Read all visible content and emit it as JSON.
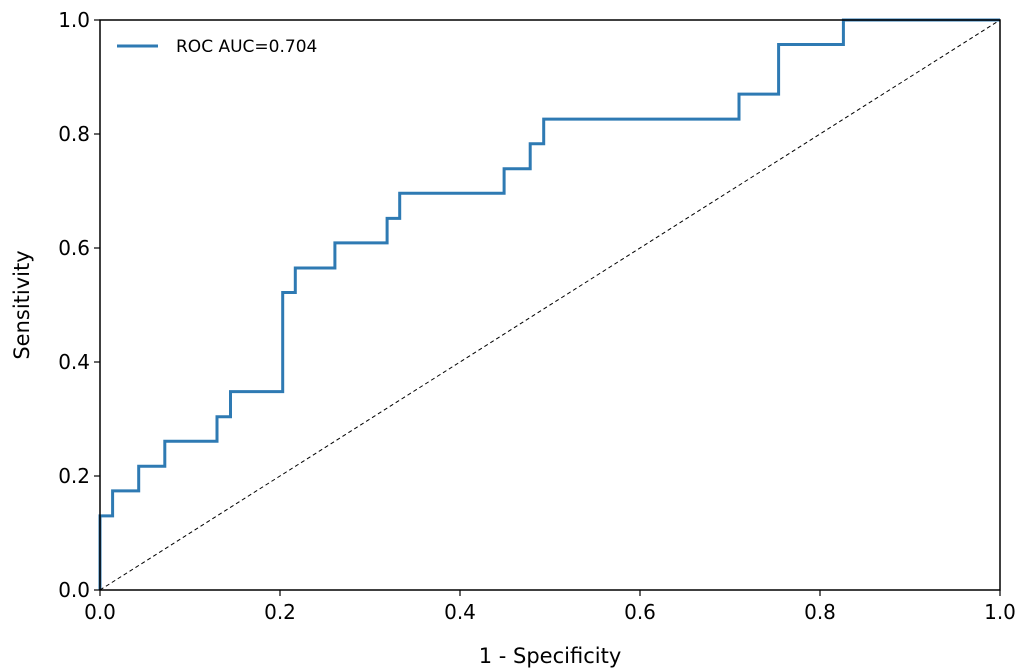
{
  "chart_data": {
    "type": "line",
    "xlabel": "1 - Specificity",
    "ylabel": "Sensitivity",
    "xlim": [
      0.0,
      1.0
    ],
    "ylim": [
      0.0,
      1.0
    ],
    "x_ticks": [
      "0.0",
      "0.2",
      "0.4",
      "0.6",
      "0.8",
      "1.0"
    ],
    "y_ticks": [
      "0.0",
      "0.2",
      "0.4",
      "0.6",
      "0.8",
      "1.0"
    ],
    "grid": false,
    "legend_position": "top-left",
    "series": [
      {
        "name": "ROC AUC=0.704",
        "color": "#2e7ab3",
        "step": true,
        "x": [
          0.0,
          0.0,
          0.0,
          0.014,
          0.014,
          0.043,
          0.043,
          0.072,
          0.072,
          0.13,
          0.13,
          0.145,
          0.145,
          0.203,
          0.203,
          0.217,
          0.217,
          0.261,
          0.261,
          0.319,
          0.319,
          0.333,
          0.333,
          0.449,
          0.449,
          0.478,
          0.478,
          0.493,
          0.493,
          0.71,
          0.71,
          0.754,
          0.754,
          0.826,
          0.826,
          1.0
        ],
        "y": [
          0.0,
          0.043,
          0.13,
          0.13,
          0.174,
          0.174,
          0.217,
          0.217,
          0.261,
          0.261,
          0.304,
          0.304,
          0.348,
          0.348,
          0.522,
          0.522,
          0.565,
          0.565,
          0.609,
          0.609,
          0.652,
          0.652,
          0.696,
          0.696,
          0.739,
          0.739,
          0.783,
          0.783,
          0.826,
          0.826,
          0.87,
          0.87,
          0.957,
          0.957,
          1.0,
          1.0
        ]
      },
      {
        "name": "",
        "color": "#000000",
        "dashed": true,
        "x": [
          0.0,
          1.0
        ],
        "y": [
          0.0,
          1.0
        ]
      }
    ],
    "legend": {
      "label": "ROC AUC=0.704"
    }
  }
}
